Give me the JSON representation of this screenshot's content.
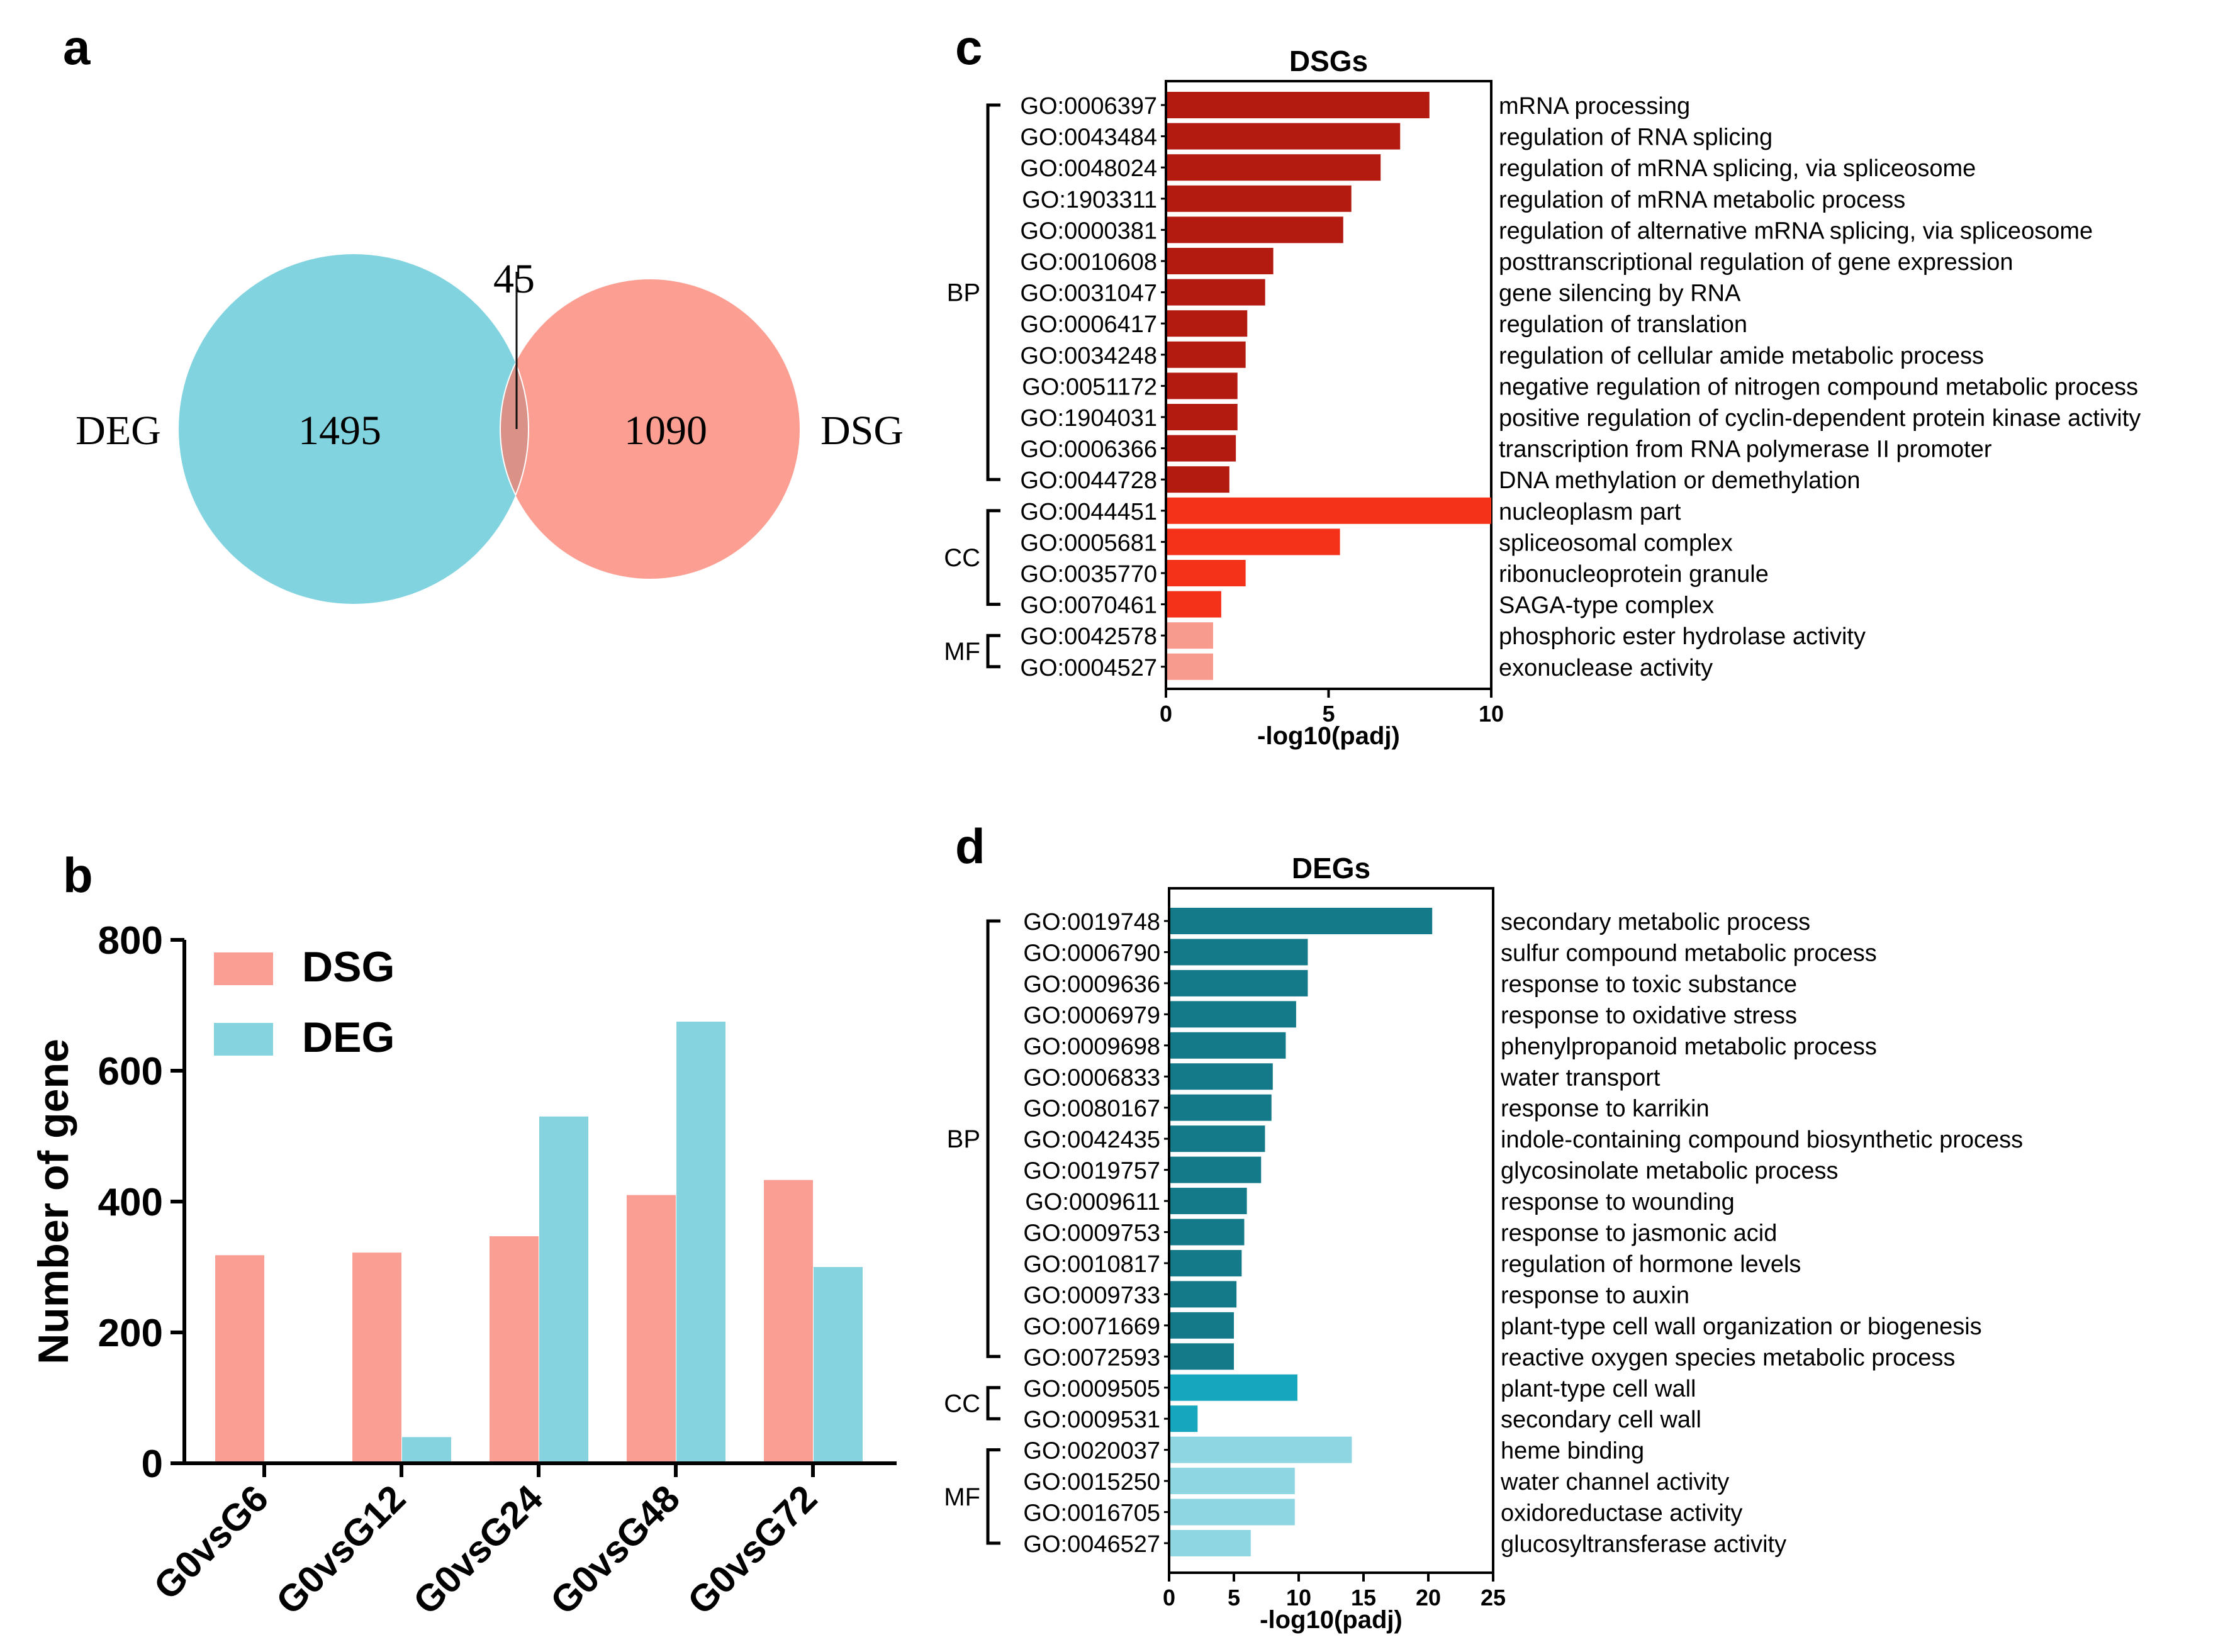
{
  "panels": {
    "a": "a",
    "b": "b",
    "c": "c",
    "d": "d"
  },
  "colors": {
    "deg": "#81d3df",
    "dsg": "#fc9f92",
    "overlap": "#d99188",
    "dsg_bp": "#b31b10",
    "dsg_cc": "#f33219",
    "dsg_mf": "#f79b8d",
    "deg_bp": "#147a8a",
    "deg_cc": "#16a6bd",
    "deg_mf": "#8ed6e2",
    "bar_dsg": "#fa9d92",
    "bar_deg": "#84d3df"
  },
  "venn": {
    "left_label": "DEG",
    "right_label": "DSG",
    "left_count": "1495",
    "right_count": "1090",
    "overlap_count": "45"
  },
  "chart_data": [
    {
      "id": "b",
      "type": "bar",
      "ylabel": "Number of gene",
      "ylim": [
        0,
        800
      ],
      "yticks": [
        "0",
        "200",
        "400",
        "600",
        "800"
      ],
      "categories": [
        "G0vsG6",
        "G0vsG12",
        "G0vsG24",
        "G0vsG48",
        "G0vsG72"
      ],
      "series": [
        {
          "name": "DSG",
          "values": [
            318,
            322,
            347,
            410,
            433
          ]
        },
        {
          "name": "DEG",
          "values": [
            0,
            40,
            530,
            675,
            300
          ]
        }
      ],
      "legend": "top-left"
    },
    {
      "id": "c",
      "type": "bar",
      "orientation": "horizontal",
      "title": "DSGs",
      "xlabel": "-log10(padj)",
      "xlim": [
        0,
        10
      ],
      "xticks": [
        "0",
        "5",
        "10"
      ],
      "groups": [
        {
          "name": "BP",
          "start": 0,
          "end": 12
        },
        {
          "name": "CC",
          "start": 13,
          "end": 16
        },
        {
          "name": "MF",
          "start": 17,
          "end": 18
        }
      ],
      "terms": [
        {
          "go": "GO:0006397",
          "desc": "mRNA processing",
          "value": 8.1,
          "group": "BP"
        },
        {
          "go": "GO:0043484",
          "desc": "regulation of RNA splicing",
          "value": 7.2,
          "group": "BP"
        },
        {
          "go": "GO:0048024",
          "desc": "regulation of mRNA splicing, via spliceosome",
          "value": 6.6,
          "group": "BP"
        },
        {
          "go": "GO:1903311",
          "desc": "regulation of mRNA metabolic process",
          "value": 5.7,
          "group": "BP"
        },
        {
          "go": "GO:0000381",
          "desc": "regulation of alternative mRNA splicing, via spliceosome",
          "value": 5.45,
          "group": "BP"
        },
        {
          "go": "GO:0010608",
          "desc": "posttranscriptional regulation of gene expression",
          "value": 3.3,
          "group": "BP"
        },
        {
          "go": "GO:0031047",
          "desc": "gene silencing by RNA",
          "value": 3.05,
          "group": "BP"
        },
        {
          "go": "GO:0006417",
          "desc": "regulation of translation",
          "value": 2.5,
          "group": "BP"
        },
        {
          "go": "GO:0034248",
          "desc": "regulation of cellular amide metabolic process",
          "value": 2.45,
          "group": "BP"
        },
        {
          "go": "GO:0051172",
          "desc": "negative regulation of nitrogen compound metabolic process",
          "value": 2.2,
          "group": "BP"
        },
        {
          "go": "GO:1904031",
          "desc": "positive regulation of cyclin-dependent protein kinase activity",
          "value": 2.2,
          "group": "BP"
        },
        {
          "go": "GO:0006366",
          "desc": "transcription from RNA polymerase II promoter",
          "value": 2.15,
          "group": "BP"
        },
        {
          "go": "GO:0044728",
          "desc": "DNA methylation or demethylation",
          "value": 1.95,
          "group": "BP"
        },
        {
          "go": "GO:0044451",
          "desc": "nucleoplasm part",
          "value": 10,
          "group": "CC"
        },
        {
          "go": "GO:0005681",
          "desc": "spliceosomal complex",
          "value": 5.35,
          "group": "CC"
        },
        {
          "go": "GO:0035770",
          "desc": "ribonucleoprotein granule",
          "value": 2.45,
          "group": "CC"
        },
        {
          "go": "GO:0070461",
          "desc": "SAGA-type complex",
          "value": 1.7,
          "group": "CC"
        },
        {
          "go": "GO:0042578",
          "desc": "phosphoric ester hydrolase activity",
          "value": 1.45,
          "group": "MF"
        },
        {
          "go": "GO:0004527",
          "desc": "exonuclease activity",
          "value": 1.45,
          "group": "MF"
        }
      ]
    },
    {
      "id": "d",
      "type": "bar",
      "orientation": "horizontal",
      "title": "DEGs",
      "xlabel": "-log10(padj)",
      "xlim": [
        0,
        25
      ],
      "xticks": [
        "0",
        "5",
        "10",
        "15",
        "20",
        "25"
      ],
      "groups": [
        {
          "name": "BP",
          "start": 0,
          "end": 14
        },
        {
          "name": "CC",
          "start": 15,
          "end": 16
        },
        {
          "name": "MF",
          "start": 17,
          "end": 20
        }
      ],
      "terms": [
        {
          "go": "GO:0019748",
          "desc": "secondary metabolic process",
          "value": 20.3,
          "group": "BP"
        },
        {
          "go": "GO:0006790",
          "desc": "sulfur compound metabolic process",
          "value": 10.7,
          "group": "BP"
        },
        {
          "go": "GO:0009636",
          "desc": "response to toxic substance",
          "value": 10.7,
          "group": "BP"
        },
        {
          "go": "GO:0006979",
          "desc": "response to oxidative stress",
          "value": 9.8,
          "group": "BP"
        },
        {
          "go": "GO:0009698",
          "desc": "phenylpropanoid metabolic process",
          "value": 9.0,
          "group": "BP"
        },
        {
          "go": "GO:0006833",
          "desc": "water transport",
          "value": 8.0,
          "group": "BP"
        },
        {
          "go": "GO:0080167",
          "desc": "response to karrikin",
          "value": 7.9,
          "group": "BP"
        },
        {
          "go": "GO:0042435",
          "desc": "indole-containing compound biosynthetic process",
          "value": 7.4,
          "group": "BP"
        },
        {
          "go": "GO:0019757",
          "desc": "glycosinolate metabolic process",
          "value": 7.1,
          "group": "BP"
        },
        {
          "go": "GO:0009611",
          "desc": "response to wounding",
          "value": 6.0,
          "group": "BP"
        },
        {
          "go": "GO:0009753",
          "desc": "response to jasmonic acid",
          "value": 5.8,
          "group": "BP"
        },
        {
          "go": "GO:0010817",
          "desc": "regulation of hormone levels",
          "value": 5.6,
          "group": "BP"
        },
        {
          "go": "GO:0009733",
          "desc": "response to auxin",
          "value": 5.2,
          "group": "BP"
        },
        {
          "go": "GO:0071669",
          "desc": "plant-type cell wall organization or biogenesis",
          "value": 5.0,
          "group": "BP"
        },
        {
          "go": "GO:0072593",
          "desc": "reactive oxygen species metabolic process",
          "value": 5.0,
          "group": "BP"
        },
        {
          "go": "GO:0009505",
          "desc": "plant-type cell wall",
          "value": 9.9,
          "group": "CC"
        },
        {
          "go": "GO:0009531",
          "desc": "secondary cell wall",
          "value": 2.2,
          "group": "CC"
        },
        {
          "go": "GO:0020037",
          "desc": "heme binding",
          "value": 14.1,
          "group": "MF"
        },
        {
          "go": "GO:0015250",
          "desc": "water channel activity",
          "value": 9.7,
          "group": "MF"
        },
        {
          "go": "GO:0016705",
          "desc": "oxidoreductase activity",
          "value": 9.7,
          "group": "MF"
        },
        {
          "go": "GO:0046527",
          "desc": "glucosyltransferase activity",
          "value": 6.3,
          "group": "MF"
        }
      ]
    }
  ]
}
